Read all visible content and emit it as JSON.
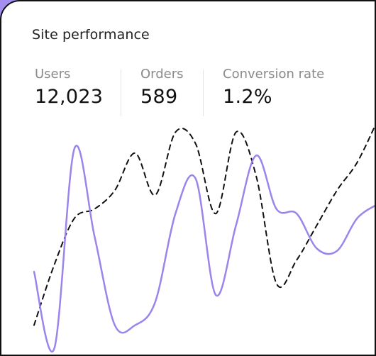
{
  "card": {
    "title": "Site performance"
  },
  "metrics": [
    {
      "label": "Users",
      "value": "12,023",
      "line_style": "solid",
      "color": "#111111"
    },
    {
      "label": "Orders",
      "value": "589",
      "line_style": "dashed",
      "color": "#111111"
    },
    {
      "label": "Conversion rate",
      "value": "1.2%",
      "line_style": "solid",
      "color": "#9b85ea"
    }
  ],
  "colors": {
    "accent": "#9b85ea",
    "ink": "#111111",
    "muted": "#8a8a8a",
    "frame": "#a48ef0"
  },
  "chart_data": {
    "type": "line",
    "title": "",
    "xlabel": "",
    "ylabel": "",
    "x": [
      0,
      1,
      2,
      3,
      4,
      5,
      6,
      7,
      8,
      9,
      10,
      11,
      12,
      13,
      14,
      15,
      16,
      17
    ],
    "ylim": [
      0,
      100
    ],
    "grid": false,
    "legend": "none",
    "series": [
      {
        "name": "Orders",
        "style": "dashed",
        "color": "#111111",
        "values": [
          12,
          38,
          58,
          62,
          70,
          86,
          68,
          95,
          90,
          60,
          95,
          76,
          30,
          40,
          55,
          70,
          82,
          100
        ]
      },
      {
        "name": "Conversion rate",
        "style": "solid",
        "color": "#9b85ea",
        "values": [
          35,
          2,
          88,
          50,
          12,
          12,
          22,
          60,
          75,
          25,
          55,
          85,
          62,
          60,
          45,
          44,
          58,
          64
        ]
      }
    ]
  }
}
